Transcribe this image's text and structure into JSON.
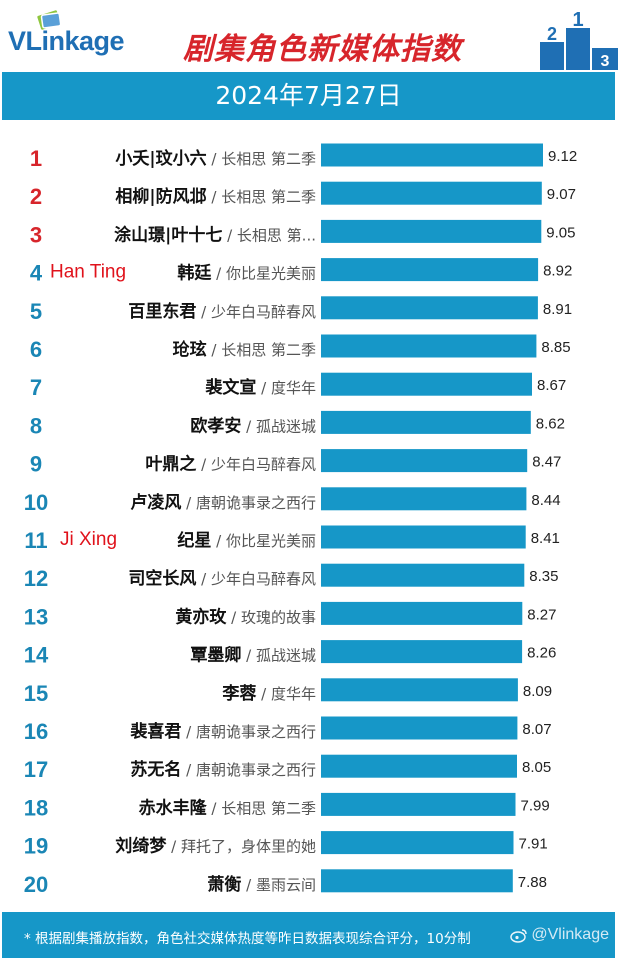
{
  "brand": {
    "logo_text_prefix": "VLink",
    "logo_text_suffix": "age",
    "watermark": "@Vlinkage",
    "brand_color": "#1f6fb4"
  },
  "title": "剧集角色新媒体指数",
  "date": "2024年7月27日",
  "footnote": "* 根据剧集播放指数，角色社交媒体热度等昨日数据表现综合评分，10分制",
  "colors": {
    "bar": "#1697c8",
    "rank_top3": "#d7252b",
    "rank_other": "#1a86b5",
    "annotation": "#e0121b",
    "title": "#d7252b"
  },
  "chart_data": {
    "type": "bar",
    "orientation": "horizontal",
    "xlim": [
      0,
      10
    ],
    "grid": false,
    "legend": "none",
    "items": [
      {
        "rank": "1",
        "name": "小夭|玟小六",
        "show": "长相思 第二季",
        "value": 9.12,
        "value_label": "9.12",
        "annotation": ""
      },
      {
        "rank": "2",
        "name": "相柳|防风邶",
        "show": "长相思 第二季",
        "value": 9.07,
        "value_label": "9.07",
        "annotation": ""
      },
      {
        "rank": "3",
        "name": "涂山璟|叶十七",
        "show": "长相思 第...",
        "value": 9.05,
        "value_label": "9.05",
        "annotation": ""
      },
      {
        "rank": "4",
        "name": "韩廷",
        "show": "你比星光美丽",
        "value": 8.92,
        "value_label": "8.92",
        "annotation": "Han Ting"
      },
      {
        "rank": "5",
        "name": "百里东君",
        "show": "少年白马醉春风",
        "value": 8.91,
        "value_label": "8.91",
        "annotation": ""
      },
      {
        "rank": "6",
        "name": "玱玹",
        "show": "长相思 第二季",
        "value": 8.85,
        "value_label": "8.85",
        "annotation": ""
      },
      {
        "rank": "7",
        "name": "裴文宣",
        "show": "度华年",
        "value": 8.67,
        "value_label": "8.67",
        "annotation": ""
      },
      {
        "rank": "8",
        "name": "欧孝安",
        "show": "孤战迷城",
        "value": 8.62,
        "value_label": "8.62",
        "annotation": ""
      },
      {
        "rank": "9",
        "name": "叶鼎之",
        "show": "少年白马醉春风",
        "value": 8.47,
        "value_label": "8.47",
        "annotation": ""
      },
      {
        "rank": "10",
        "name": "卢凌风",
        "show": "唐朝诡事录之西行",
        "value": 8.44,
        "value_label": "8.44",
        "annotation": ""
      },
      {
        "rank": "11",
        "name": "纪星",
        "show": "你比星光美丽",
        "value": 8.41,
        "value_label": "8.41",
        "annotation": "Ji Xing"
      },
      {
        "rank": "12",
        "name": "司空长风",
        "show": "少年白马醉春风",
        "value": 8.35,
        "value_label": "8.35",
        "annotation": ""
      },
      {
        "rank": "13",
        "name": "黄亦玫",
        "show": "玫瑰的故事",
        "value": 8.27,
        "value_label": "8.27",
        "annotation": ""
      },
      {
        "rank": "14",
        "name": "覃墨卿",
        "show": "孤战迷城",
        "value": 8.26,
        "value_label": "8.26",
        "annotation": ""
      },
      {
        "rank": "15",
        "name": "李蓉",
        "show": "度华年",
        "value": 8.09,
        "value_label": "8.09",
        "annotation": ""
      },
      {
        "rank": "16",
        "name": "裴喜君",
        "show": "唐朝诡事录之西行",
        "value": 8.07,
        "value_label": "8.07",
        "annotation": ""
      },
      {
        "rank": "17",
        "name": "苏无名",
        "show": "唐朝诡事录之西行",
        "value": 8.05,
        "value_label": "8.05",
        "annotation": ""
      },
      {
        "rank": "18",
        "name": "赤水丰隆",
        "show": "长相思 第二季",
        "value": 7.99,
        "value_label": "7.99",
        "annotation": ""
      },
      {
        "rank": "19",
        "name": "刘绮梦",
        "show": "拜托了，身体里的她",
        "value": 7.91,
        "value_label": "7.91",
        "annotation": ""
      },
      {
        "rank": "20",
        "name": "萧衡",
        "show": "墨雨云间",
        "value": 7.88,
        "value_label": "7.88",
        "annotation": ""
      }
    ]
  }
}
